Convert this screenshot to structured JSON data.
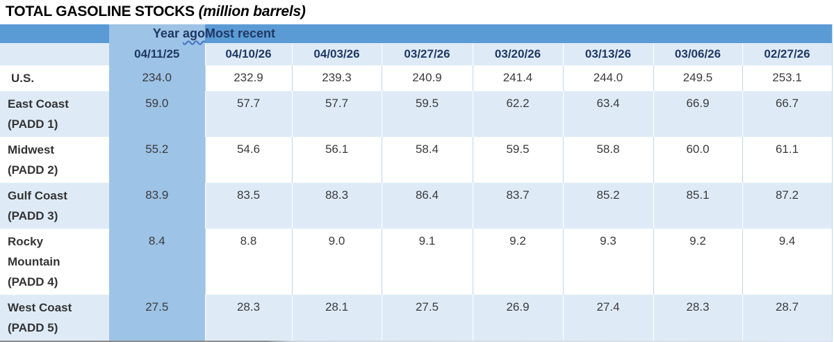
{
  "title": {
    "main": "TOTAL GASOLINE STOCKS",
    "unit": "(million barrels)"
  },
  "table": {
    "header": {
      "year_ago_parts": [
        "Year",
        "ago"
      ],
      "most_recent_label": "Most recent"
    },
    "date_columns": {
      "year_ago_date": "04/11/25",
      "recent_dates": [
        "04/10/26",
        "04/03/26",
        "03/27/26",
        "03/20/26",
        "03/13/26",
        "03/06/26",
        "02/27/26"
      ]
    },
    "rows": [
      {
        "label_lines": [
          "U.S."
        ],
        "year_ago": "234.0",
        "values": [
          "232.9",
          "239.3",
          "240.9",
          "241.4",
          "244.0",
          "249.5",
          "253.1"
        ]
      },
      {
        "label_lines": [
          "East Coast",
          "(PADD 1)"
        ],
        "year_ago": "59.0",
        "values": [
          "57.7",
          "57.7",
          "59.5",
          "62.2",
          "63.4",
          "66.9",
          "66.7"
        ]
      },
      {
        "label_lines": [
          "Midwest",
          "(PADD 2)"
        ],
        "year_ago": "55.2",
        "values": [
          "54.6",
          "56.1",
          "58.4",
          "59.5",
          "58.8",
          "60.0",
          "61.1"
        ]
      },
      {
        "label_lines": [
          "Gulf Coast",
          "(PADD 3)"
        ],
        "year_ago": "83.9",
        "values": [
          "83.5",
          "88.3",
          "86.4",
          "83.7",
          "85.2",
          "85.1",
          "87.2"
        ]
      },
      {
        "label_lines": [
          "Rocky",
          "Mountain",
          "(PADD 4)"
        ],
        "year_ago": "8.4",
        "values": [
          "8.8",
          "9.0",
          "9.1",
          "9.2",
          "9.3",
          "9.2",
          "9.4"
        ]
      },
      {
        "label_lines": [
          "West Coast",
          "(PADD 5)"
        ],
        "year_ago": "27.5",
        "values": [
          "28.3",
          "28.1",
          "27.5",
          "26.9",
          "27.4",
          "28.3",
          "28.7"
        ]
      }
    ]
  },
  "colors": {
    "header_blue": "#5B9BD5",
    "year_ago_blue": "#9DC3E6",
    "band_light_blue": "#DEEBF7",
    "separator_blue": "#BDD7EE",
    "header_text": "#1F3864",
    "squiggle_blue": "#4472C4"
  }
}
